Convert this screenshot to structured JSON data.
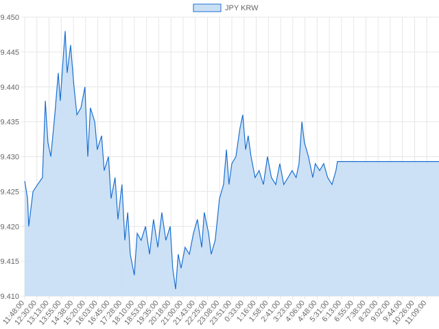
{
  "chart_data": {
    "type": "area",
    "title": "",
    "legend": {
      "label": "JPY KRW",
      "position": "top-center"
    },
    "colors": {
      "line": "#1a6fd1",
      "fill": "#c9dff4",
      "grid": "#e6e6e6"
    },
    "ylim": [
      9.41,
      9.45
    ],
    "yticks": [
      "9.410",
      "9.415",
      "9.420",
      "9.425",
      "9.430",
      "9.435",
      "9.440",
      "9.445",
      "9.450"
    ],
    "xlim_minutes": [
      0,
      1444
    ],
    "xtick_labels": [
      "11:48:00",
      "12:30:00",
      "13:13:00",
      "13:55:00",
      "14:38:00",
      "15:20:00",
      "16:03:00",
      "16:45:00",
      "17:28:00",
      "18:10:00",
      "18:53:00",
      "19:35:00",
      "20:18:00",
      "21:00:00",
      "21:43:00",
      "22:25:00",
      "23:08:00",
      "23:51:00",
      "0:33:00",
      "1:16:00",
      "1:58:00",
      "2:41:00",
      "3:23:00",
      "4:06:00",
      "4:48:00",
      "5:31:00",
      "6:13:00",
      "6:55:00",
      "7:38:00",
      "8:20:00",
      "9:02:00",
      "9:44:00",
      "10:26:00",
      "11:09:00"
    ],
    "points": [
      [
        0,
        9.4265
      ],
      [
        10,
        9.424
      ],
      [
        14,
        9.42
      ],
      [
        29,
        9.425
      ],
      [
        45,
        9.426
      ],
      [
        62,
        9.427
      ],
      [
        72,
        9.438
      ],
      [
        81,
        9.432
      ],
      [
        91,
        9.43
      ],
      [
        105,
        9.436
      ],
      [
        117,
        9.442
      ],
      [
        124,
        9.438
      ],
      [
        134,
        9.444
      ],
      [
        141,
        9.448
      ],
      [
        148,
        9.442
      ],
      [
        160,
        9.446
      ],
      [
        172,
        9.44
      ],
      [
        182,
        9.436
      ],
      [
        196,
        9.437
      ],
      [
        210,
        9.44
      ],
      [
        220,
        9.43
      ],
      [
        229,
        9.437
      ],
      [
        244,
        9.435
      ],
      [
        253,
        9.431
      ],
      [
        268,
        9.433
      ],
      [
        277,
        9.428
      ],
      [
        292,
        9.43
      ],
      [
        301,
        9.424
      ],
      [
        315,
        9.427
      ],
      [
        325,
        9.421
      ],
      [
        339,
        9.426
      ],
      [
        349,
        9.418
      ],
      [
        359,
        9.422
      ],
      [
        368,
        9.416
      ],
      [
        382,
        9.413
      ],
      [
        392,
        9.419
      ],
      [
        406,
        9.418
      ],
      [
        421,
        9.42
      ],
      [
        435,
        9.416
      ],
      [
        449,
        9.421
      ],
      [
        464,
        9.417
      ],
      [
        478,
        9.422
      ],
      [
        492,
        9.418
      ],
      [
        507,
        9.42
      ],
      [
        516,
        9.414
      ],
      [
        526,
        9.411
      ],
      [
        535,
        9.416
      ],
      [
        545,
        9.414
      ],
      [
        559,
        9.417
      ],
      [
        574,
        9.416
      ],
      [
        588,
        9.419
      ],
      [
        602,
        9.421
      ],
      [
        617,
        9.417
      ],
      [
        626,
        9.422
      ],
      [
        641,
        9.419
      ],
      [
        650,
        9.416
      ],
      [
        664,
        9.418
      ],
      [
        679,
        9.424
      ],
      [
        693,
        9.426
      ],
      [
        703,
        9.431
      ],
      [
        712,
        9.426
      ],
      [
        722,
        9.429
      ],
      [
        736,
        9.43
      ],
      [
        750,
        9.434
      ],
      [
        760,
        9.436
      ],
      [
        770,
        9.431
      ],
      [
        779,
        9.433
      ],
      [
        789,
        9.43
      ],
      [
        803,
        9.427
      ],
      [
        817,
        9.428
      ],
      [
        832,
        9.426
      ],
      [
        846,
        9.43
      ],
      [
        860,
        9.427
      ],
      [
        875,
        9.426
      ],
      [
        889,
        9.429
      ],
      [
        903,
        9.426
      ],
      [
        918,
        9.427
      ],
      [
        932,
        9.428
      ],
      [
        946,
        9.427
      ],
      [
        956,
        9.429
      ],
      [
        966,
        9.435
      ],
      [
        975,
        9.432
      ],
      [
        989,
        9.43
      ],
      [
        1004,
        9.427
      ],
      [
        1013,
        9.429
      ],
      [
        1028,
        9.428
      ],
      [
        1042,
        9.429
      ],
      [
        1056,
        9.427
      ],
      [
        1071,
        9.426
      ],
      [
        1085,
        9.428
      ],
      [
        1090,
        9.4293
      ],
      [
        1444,
        9.4293
      ]
    ]
  }
}
